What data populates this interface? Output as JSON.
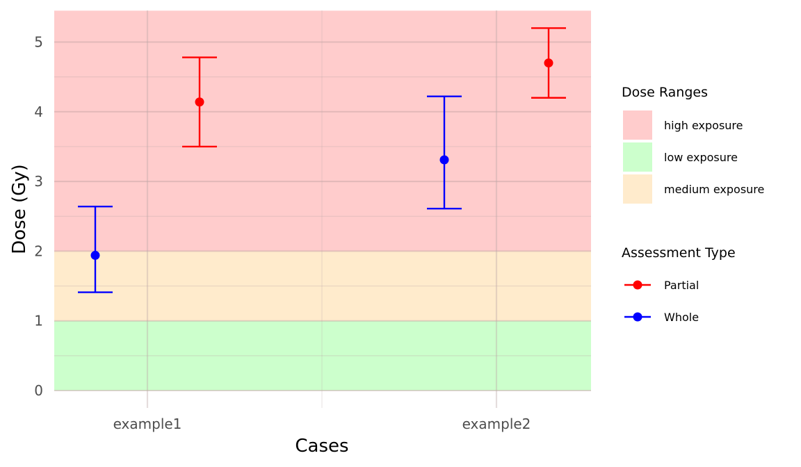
{
  "chart_data": {
    "type": "scatter",
    "title": "",
    "xlabel": "Cases",
    "ylabel": "Dose (Gy)",
    "categories": [
      "example1",
      "example2"
    ],
    "ylim": [
      0,
      5.45
    ],
    "yticks": [
      0,
      1,
      2,
      3,
      4,
      5
    ],
    "grid": true,
    "legend_position": "right",
    "bands": {
      "title": "Dose Ranges",
      "items": [
        {
          "label": "high exposure",
          "from": 2,
          "to": 5.45,
          "color": "#ffcccc"
        },
        {
          "label": "low exposure",
          "from": 0,
          "to": 1,
          "color": "#ccffcc"
        },
        {
          "label": "medium exposure",
          "from": 1,
          "to": 2,
          "color": "#ffebcc"
        }
      ]
    },
    "series_legend_title": "Assessment Type",
    "series": [
      {
        "name": "Partial",
        "color": "#ff0000",
        "points": [
          {
            "category": "example1",
            "value": 4.14,
            "lower": 3.5,
            "upper": 4.78
          },
          {
            "category": "example2",
            "value": 4.7,
            "lower": 4.2,
            "upper": 5.2
          }
        ]
      },
      {
        "name": "Whole",
        "color": "#0000ff",
        "points": [
          {
            "category": "example1",
            "value": 1.94,
            "lower": 1.41,
            "upper": 2.64
          },
          {
            "category": "example2",
            "value": 3.31,
            "lower": 2.61,
            "upper": 4.22
          }
        ]
      }
    ]
  }
}
